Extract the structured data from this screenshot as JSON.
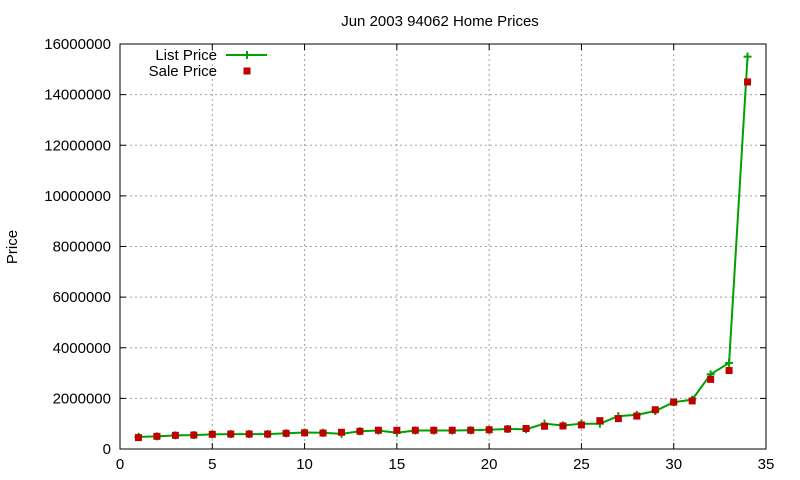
{
  "chart_data": {
    "type": "line",
    "title": "Jun 2003 94062 Home Prices",
    "xlabel": "",
    "ylabel": "Price",
    "xlim": [
      0,
      35
    ],
    "ylim": [
      0,
      16000000
    ],
    "x_ticks": [
      0,
      5,
      10,
      15,
      20,
      25,
      30,
      35
    ],
    "y_ticks": [
      0,
      2000000,
      4000000,
      6000000,
      8000000,
      10000000,
      12000000,
      14000000,
      16000000
    ],
    "grid": true,
    "legend_position": "top-left",
    "x": [
      1,
      2,
      3,
      4,
      5,
      6,
      7,
      8,
      9,
      10,
      11,
      12,
      13,
      14,
      15,
      16,
      17,
      18,
      19,
      20,
      21,
      22,
      23,
      24,
      25,
      26,
      27,
      28,
      29,
      30,
      31,
      32,
      33,
      34
    ],
    "series": [
      {
        "name": "List Price",
        "style": "line-plus",
        "color": "#00a000",
        "values": [
          480000,
          500000,
          540000,
          550000,
          580000,
          590000,
          590000,
          590000,
          620000,
          650000,
          640000,
          600000,
          700000,
          730000,
          640000,
          730000,
          730000,
          730000,
          740000,
          760000,
          790000,
          780000,
          1000000,
          930000,
          1000000,
          1000000,
          1300000,
          1350000,
          1500000,
          1850000,
          1950000,
          2950000,
          3400000,
          15500000
        ]
      },
      {
        "name": "Sale Price",
        "style": "square-markers",
        "color": "#c00000",
        "values": [
          450000,
          500000,
          540000,
          550000,
          580000,
          590000,
          590000,
          590000,
          620000,
          640000,
          630000,
          660000,
          700000,
          740000,
          740000,
          740000,
          740000,
          740000,
          740000,
          760000,
          790000,
          810000,
          900000,
          910000,
          950000,
          1120000,
          1200000,
          1300000,
          1550000,
          1850000,
          1900000,
          2750000,
          3100000,
          14500000
        ]
      }
    ]
  }
}
